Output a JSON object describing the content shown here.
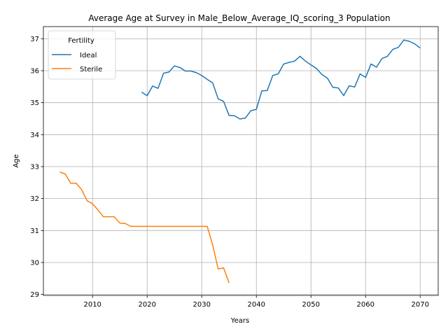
{
  "chart_data": {
    "type": "line",
    "title": "Average Age at Survey in Male_Below_Average_IQ_scoring_3 Population",
    "xlabel": "Years",
    "ylabel": "Age",
    "xlim": [
      2001,
      2073.3
    ],
    "ylim": [
      28.97,
      37.38
    ],
    "xticks": [
      2010,
      2020,
      2030,
      2040,
      2050,
      2060,
      2070
    ],
    "yticks": [
      29,
      30,
      31,
      32,
      33,
      34,
      35,
      36,
      37
    ],
    "grid": true,
    "legend": {
      "title": "Fertility",
      "placement": "upper-left"
    },
    "series": [
      {
        "name": "Ideal",
        "color": "#1f77b4",
        "x": [
          2019,
          2020,
          2021,
          2022,
          2023,
          2024,
          2025,
          2026,
          2027,
          2028,
          2029,
          2030,
          2031,
          2032,
          2033,
          2034,
          2035,
          2036,
          2037,
          2038,
          2039,
          2040,
          2041,
          2042,
          2043,
          2044,
          2045,
          2046,
          2047,
          2048,
          2049,
          2050,
          2051,
          2052,
          2053,
          2054,
          2055,
          2056,
          2057,
          2058,
          2059,
          2060,
          2061,
          2062,
          2063,
          2064,
          2065,
          2066,
          2067,
          2068,
          2069,
          2070
        ],
        "y": [
          35.33,
          35.22,
          35.52,
          35.45,
          35.92,
          35.96,
          36.15,
          36.1,
          35.99,
          35.99,
          35.94,
          35.85,
          35.73,
          35.62,
          35.12,
          35.04,
          34.6,
          34.59,
          34.49,
          34.52,
          34.75,
          34.79,
          35.37,
          35.38,
          35.85,
          35.9,
          36.21,
          36.26,
          36.3,
          36.45,
          36.3,
          36.18,
          36.07,
          35.88,
          35.77,
          35.48,
          35.46,
          35.22,
          35.53,
          35.49,
          35.9,
          35.79,
          36.21,
          36.11,
          36.38,
          36.45,
          36.67,
          36.73,
          36.96,
          36.92,
          36.84,
          36.71
        ]
      },
      {
        "name": "Sterile",
        "color": "#ff7f0e",
        "x": [
          2004,
          2005,
          2006,
          2007,
          2008,
          2009,
          2010,
          2011,
          2012,
          2013,
          2014,
          2015,
          2016,
          2017,
          2018,
          2019,
          2020,
          2021,
          2022,
          2023,
          2024,
          2025,
          2026,
          2027,
          2028,
          2029,
          2030,
          2031,
          2032,
          2033,
          2034,
          2035
        ],
        "y": [
          32.83,
          32.77,
          32.48,
          32.48,
          32.28,
          31.93,
          31.84,
          31.64,
          31.43,
          31.43,
          31.43,
          31.23,
          31.22,
          31.13,
          31.13,
          31.13,
          31.13,
          31.13,
          31.13,
          31.13,
          31.13,
          31.13,
          31.13,
          31.13,
          31.13,
          31.13,
          31.13,
          31.13,
          30.55,
          29.8,
          29.83,
          29.36
        ]
      }
    ]
  }
}
